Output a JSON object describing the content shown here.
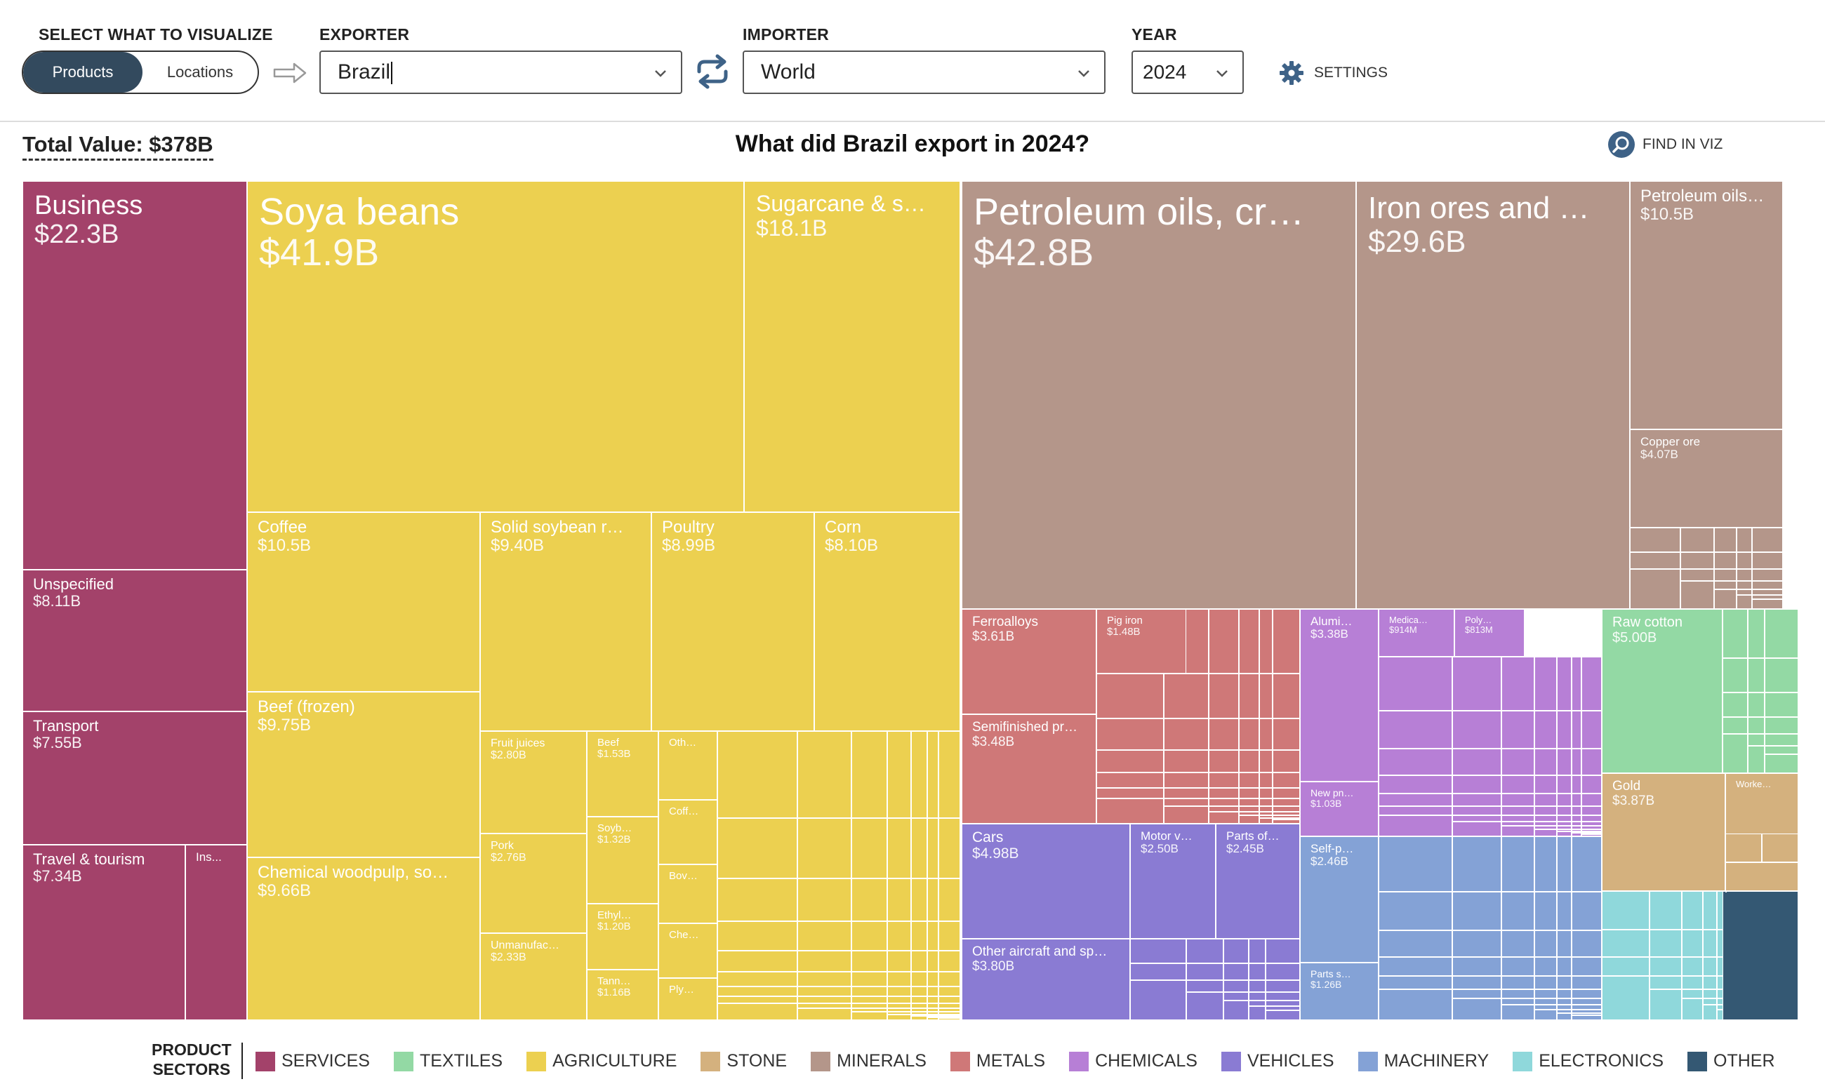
{
  "controls": {
    "visualize_label": "SELECT WHAT TO VISUALIZE",
    "toggle_products": "Products",
    "toggle_locations": "Locations",
    "exporter_label": "EXPORTER",
    "exporter_value": "Brazil",
    "importer_label": "IMPORTER",
    "importer_value": "World",
    "year_label": "YEAR",
    "year_value": "2024",
    "settings_label": "SETTINGS"
  },
  "header": {
    "total_value": "Total Value: $378B",
    "title": "What did Brazil export in 2024?",
    "find_label": "FIND IN VIZ"
  },
  "colors": {
    "services": "#a3426a",
    "textiles": "#93d9a4",
    "agriculture": "#ecd050",
    "stone": "#d4b17e",
    "minerals": "#b4968a",
    "metals": "#cf7878",
    "chemicals": "#b77fd6",
    "vehicles": "#8a7bd3",
    "machinery": "#84a2d6",
    "electronics": "#8fd8db",
    "other": "#345873"
  },
  "legend": {
    "title_line1": "PRODUCT",
    "title_line2": "SECTORS",
    "items": [
      {
        "label": "SERVICES",
        "color": "#a3426a"
      },
      {
        "label": "TEXTILES",
        "color": "#93d9a4"
      },
      {
        "label": "AGRICULTURE",
        "color": "#ecd050"
      },
      {
        "label": "STONE",
        "color": "#d4b17e"
      },
      {
        "label": "MINERALS",
        "color": "#b4968a"
      },
      {
        "label": "METALS",
        "color": "#cf7878"
      },
      {
        "label": "CHEMICALS",
        "color": "#b77fd6"
      },
      {
        "label": "VEHICLES",
        "color": "#8a7bd3"
      },
      {
        "label": "MACHINERY",
        "color": "#84a2d6"
      },
      {
        "label": "ELECTRONICS",
        "color": "#8fd8db"
      },
      {
        "label": "OTHER",
        "color": "#345873"
      }
    ]
  },
  "treemap": {
    "labeled": [
      {
        "name": "Business",
        "value": "$22.3B",
        "sector": "services"
      },
      {
        "name": "Unspecified",
        "value": "$8.11B",
        "sector": "services"
      },
      {
        "name": "Transport",
        "value": "$7.55B",
        "sector": "services"
      },
      {
        "name": "Travel & tourism",
        "value": "$7.34B",
        "sector": "services"
      },
      {
        "name": "Ins...",
        "value": "",
        "sector": "services"
      },
      {
        "name": "Soya beans",
        "value": "$41.9B",
        "sector": "agriculture"
      },
      {
        "name": "Sugarcane & s…",
        "value": "$18.1B",
        "sector": "agriculture"
      },
      {
        "name": "Coffee",
        "value": "$10.5B",
        "sector": "agriculture"
      },
      {
        "name": "Solid soybean r…",
        "value": "$9.40B",
        "sector": "agriculture"
      },
      {
        "name": "Poultry",
        "value": "$8.99B",
        "sector": "agriculture"
      },
      {
        "name": "Corn",
        "value": "$8.10B",
        "sector": "agriculture"
      },
      {
        "name": "Beef (frozen)",
        "value": "$9.75B",
        "sector": "agriculture"
      },
      {
        "name": "Chemical woodpulp, so…",
        "value": "$9.66B",
        "sector": "agriculture"
      },
      {
        "name": "Fruit juices",
        "value": "$2.80B",
        "sector": "agriculture"
      },
      {
        "name": "Beef",
        "value": "$1.53B",
        "sector": "agriculture"
      },
      {
        "name": "Oth…",
        "value": "",
        "sector": "agriculture"
      },
      {
        "name": "Soyb…",
        "value": "$1.32B",
        "sector": "agriculture"
      },
      {
        "name": "Coff…",
        "value": "",
        "sector": "agriculture"
      },
      {
        "name": "Pork",
        "value": "$2.76B",
        "sector": "agriculture"
      },
      {
        "name": "Ethyl…",
        "value": "$1.20B",
        "sector": "agriculture"
      },
      {
        "name": "Bov…",
        "value": "",
        "sector": "agriculture"
      },
      {
        "name": "Unmanufac…",
        "value": "$2.33B",
        "sector": "agriculture"
      },
      {
        "name": "Che…",
        "value": "",
        "sector": "agriculture"
      },
      {
        "name": "Tann…",
        "value": "$1.16B",
        "sector": "agriculture"
      },
      {
        "name": "Ply…",
        "value": "",
        "sector": "agriculture"
      },
      {
        "name": "Petroleum oils, cr…",
        "value": "$42.8B",
        "sector": "minerals"
      },
      {
        "name": "Iron ores and …",
        "value": "$29.6B",
        "sector": "minerals"
      },
      {
        "name": "Petroleum oils…",
        "value": "$10.5B",
        "sector": "minerals"
      },
      {
        "name": "Copper ore",
        "value": "$4.07B",
        "sector": "minerals"
      },
      {
        "name": "Ferroalloys",
        "value": "$3.61B",
        "sector": "metals"
      },
      {
        "name": "Pig iron",
        "value": "$1.48B",
        "sector": "metals"
      },
      {
        "name": "Semifinished pr…",
        "value": "$3.48B",
        "sector": "metals"
      },
      {
        "name": "Alumi…",
        "value": "$3.38B",
        "sector": "chemicals"
      },
      {
        "name": "Medica…",
        "value": "$914M",
        "sector": "chemicals"
      },
      {
        "name": "Poly…",
        "value": "$813M",
        "sector": "chemicals"
      },
      {
        "name": "New pn…",
        "value": "$1.03B",
        "sector": "chemicals"
      },
      {
        "name": "Cars",
        "value": "$4.98B",
        "sector": "vehicles"
      },
      {
        "name": "Motor v…",
        "value": "$2.50B",
        "sector": "vehicles"
      },
      {
        "name": "Parts of…",
        "value": "$2.45B",
        "sector": "vehicles"
      },
      {
        "name": "Other aircraft and sp…",
        "value": "$3.80B",
        "sector": "vehicles"
      },
      {
        "name": "Self-p…",
        "value": "$2.46B",
        "sector": "machinery"
      },
      {
        "name": "Parts s…",
        "value": "$1.26B",
        "sector": "machinery"
      },
      {
        "name": "Raw cotton",
        "value": "$5.00B",
        "sector": "textiles"
      },
      {
        "name": "Gold",
        "value": "$3.87B",
        "sector": "stone"
      },
      {
        "name": "Worke…",
        "value": "",
        "sector": "stone"
      }
    ]
  }
}
